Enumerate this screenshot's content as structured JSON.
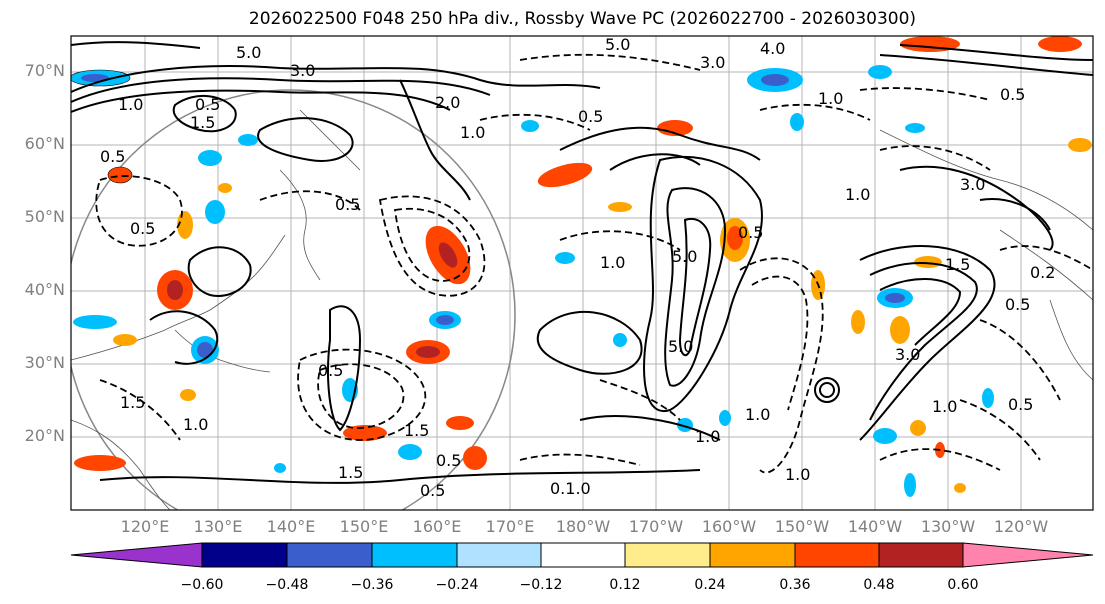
{
  "title": "2026022500 F048 250 hPa div., Rossby Wave PC (2026022700 - 2026030300)",
  "map": {
    "lat_labels": [
      "70°N",
      "60°N",
      "50°N",
      "40°N",
      "30°N",
      "20°N"
    ],
    "lon_labels": [
      "120°E",
      "130°E",
      "140°E",
      "150°E",
      "160°E",
      "170°E",
      "180°W",
      "170°W",
      "160°W",
      "150°W",
      "140°W",
      "130°W",
      "120°W"
    ],
    "contour_labels": [
      "5.0",
      "3.0",
      "2.0",
      "0.5",
      "1.0",
      "1.5",
      "0.5",
      "5.0",
      "4.0",
      "3.0",
      "1.0",
      "0.5",
      "1.0",
      "5.0",
      "0.5",
      "1.0",
      "0.5",
      "1.5",
      "3.0",
      "0.5",
      "5.0",
      "1.0",
      "1.0",
      "0.5",
      "1.5",
      "0.1.0",
      "0.5",
      "0.5",
      "1.0",
      "1.5",
      "0.5",
      "1.0",
      "0.5",
      "0.2",
      "1.5",
      "1.0",
      "1.0",
      "3.0",
      "0.5"
    ]
  },
  "colorbar": {
    "ticks": [
      "−0.60",
      "−0.48",
      "−0.36",
      "−0.24",
      "−0.12",
      "0.12",
      "0.24",
      "0.36",
      "0.48",
      "0.60"
    ],
    "colors": [
      "#9a32cd",
      "#00008b",
      "#3a5fcd",
      "#00bfff",
      "#b0e2ff",
      "#ffffff",
      "#ffec8b",
      "#ffa500",
      "#ff4500",
      "#b22222",
      "#ff83ac"
    ]
  },
  "colors": {
    "grid": "#a0a0a0",
    "contour": "#000000",
    "axis_label": "#808080"
  }
}
